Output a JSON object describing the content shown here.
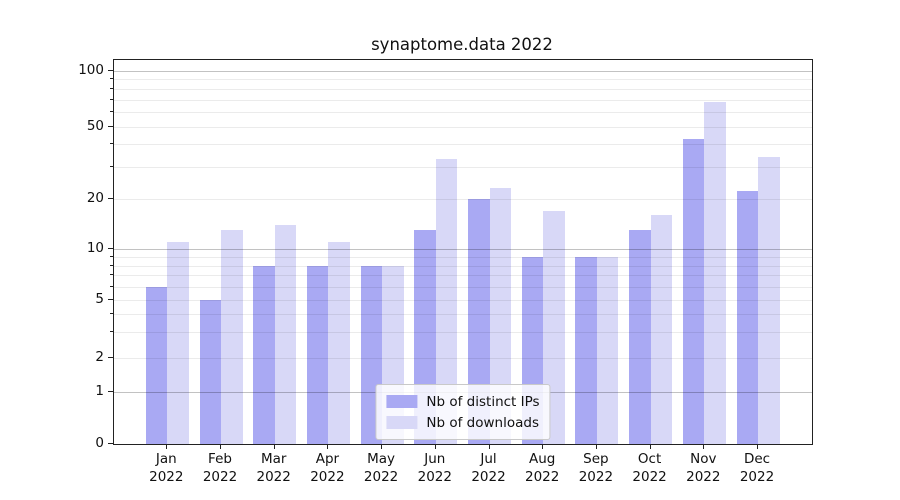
{
  "chart_data": {
    "type": "bar",
    "title": "synaptome.data 2022",
    "categories": [
      "Jan",
      "Feb",
      "Mar",
      "Apr",
      "May",
      "Jun",
      "Jul",
      "Aug",
      "Sep",
      "Oct",
      "Nov",
      "Dec"
    ],
    "category_year": "2022",
    "series": [
      {
        "name": "Nb of distinct IPs",
        "color": "#a9a9f3",
        "values": [
          6,
          5,
          8,
          8,
          8,
          13,
          20,
          9,
          9,
          13,
          43,
          22
        ]
      },
      {
        "name": "Nb of downloads",
        "color": "#d8d8f7",
        "values": [
          11,
          13,
          14,
          11,
          8,
          33,
          23,
          17,
          9,
          16,
          68,
          34
        ]
      }
    ],
    "xlabel": "",
    "ylabel": "",
    "yscale": "symlog",
    "ylim": [
      0,
      115
    ],
    "y_major_ticks": [
      0,
      1,
      2,
      5,
      10,
      20,
      50,
      100
    ],
    "y_minor_ticks": [
      3,
      4,
      6,
      7,
      8,
      9,
      30,
      40,
      60,
      70,
      80,
      90
    ],
    "grid": true,
    "grid_over_bars": true,
    "legend_position": "lower center"
  }
}
